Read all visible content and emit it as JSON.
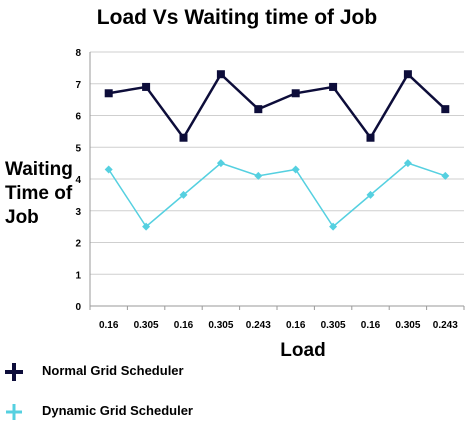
{
  "chart_data": {
    "type": "line",
    "title": "Load Vs Waiting time of Job",
    "xlabel": "Load",
    "ylabel": "Waiting Time of Job",
    "categories": [
      "0.16",
      "0.305",
      "0.16",
      "0.305",
      "0.243",
      "0.16",
      "0.305",
      "0.16",
      "0.305",
      "0.243"
    ],
    "series": [
      {
        "name": "Normal Grid Scheduler",
        "values": [
          6.7,
          6.9,
          5.3,
          7.3,
          6.2,
          6.7,
          6.9,
          5.3,
          7.3,
          6.2
        ],
        "color": "#0d0d3a",
        "marker": "square"
      },
      {
        "name": "Dynamic Grid Scheduler",
        "values": [
          4.3,
          2.5,
          3.5,
          4.5,
          4.1,
          4.3,
          2.5,
          3.5,
          4.5,
          4.1
        ],
        "color": "#55d0e0",
        "marker": "diamond"
      }
    ],
    "ylim": [
      0,
      8
    ],
    "yticks": [
      0,
      1,
      2,
      3,
      4,
      5,
      6,
      7,
      8
    ],
    "grid": true,
    "legend_position": "bottom-left"
  },
  "legend": [
    {
      "label": "Normal Grid Scheduler",
      "icon": "plus-icon"
    },
    {
      "label": "Dynamic Grid Scheduler",
      "icon": "plus-icon"
    }
  ]
}
